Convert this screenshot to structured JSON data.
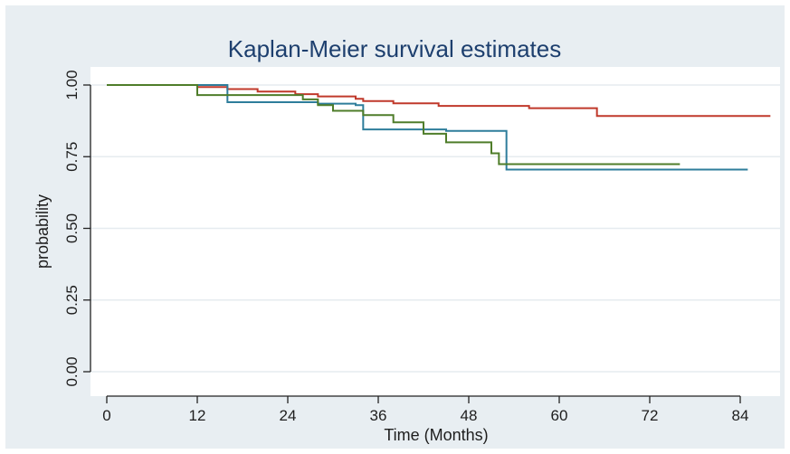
{
  "chart_data": {
    "type": "line",
    "title": "Kaplan-Meier survival estimates",
    "xlabel": "Time (Months)",
    "ylabel": "probability",
    "xlim": [
      0,
      88
    ],
    "ylim": [
      0,
      1
    ],
    "x_ticks": [
      0,
      12,
      24,
      36,
      48,
      60,
      72,
      84
    ],
    "y_ticks": [
      0.0,
      0.25,
      0.5,
      0.75,
      1.0
    ],
    "x_tick_labels": [
      "0",
      "12",
      "24",
      "36",
      "48",
      "60",
      "72",
      "84"
    ],
    "y_tick_labels": [
      "0.00",
      "0.25",
      "0.50",
      "0.75",
      "1.00"
    ],
    "grid": "horizontal",
    "legend": "none",
    "background_color": "#e8eef2",
    "series": [
      {
        "color": "#c0392b",
        "x": [
          0,
          10,
          12,
          16,
          20,
          25,
          28,
          33,
          34,
          38,
          44,
          52,
          56,
          65,
          88
        ],
        "y": [
          1.0,
          1.0,
          0.993,
          0.986,
          0.977,
          0.968,
          0.96,
          0.952,
          0.944,
          0.936,
          0.927,
          0.927,
          0.919,
          0.892,
          0.892
        ]
      },
      {
        "color": "#2e7d9b",
        "x": [
          0,
          12,
          16,
          24,
          28,
          33,
          34,
          44,
          45,
          52,
          53,
          85
        ],
        "y": [
          1.0,
          1.0,
          0.94,
          0.94,
          0.935,
          0.93,
          0.845,
          0.845,
          0.84,
          0.84,
          0.705,
          0.705
        ]
      },
      {
        "color": "#4f7d2a",
        "x": [
          0,
          11,
          12,
          24,
          26,
          28,
          30,
          34,
          38,
          42,
          45,
          51,
          52,
          53,
          76
        ],
        "y": [
          1.0,
          1.0,
          0.965,
          0.965,
          0.95,
          0.93,
          0.91,
          0.895,
          0.87,
          0.83,
          0.8,
          0.762,
          0.724,
          0.724,
          0.724
        ]
      }
    ]
  }
}
